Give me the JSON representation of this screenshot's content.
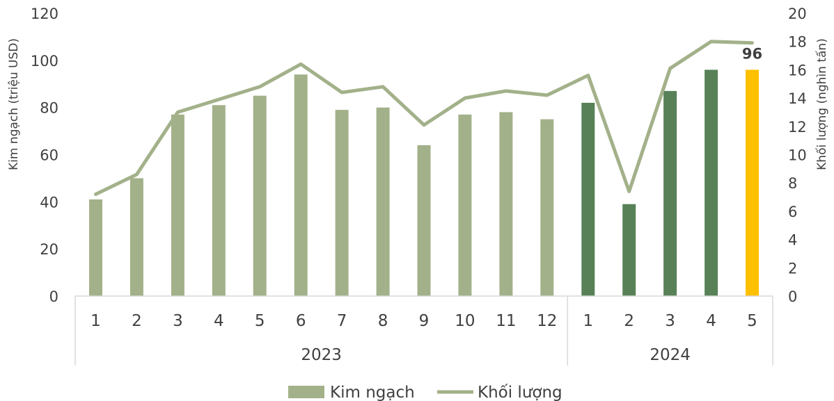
{
  "chart_data": {
    "type": "bar",
    "categories": [
      "1",
      "2",
      "3",
      "4",
      "5",
      "6",
      "7",
      "8",
      "9",
      "10",
      "11",
      "12",
      "1",
      "2",
      "3",
      "4",
      "5"
    ],
    "groups": [
      {
        "label": "2023",
        "count": 12
      },
      {
        "label": "2024",
        "count": 5
      }
    ],
    "series": [
      {
        "name": "Kim ngạch",
        "type": "bar",
        "axis": "left",
        "values": [
          41,
          50,
          77,
          81,
          85,
          94,
          79,
          80,
          64,
          77,
          78,
          75,
          82,
          39,
          87,
          96,
          96
        ],
        "colors": [
          "#a3b18a",
          "#a3b18a",
          "#a3b18a",
          "#a3b18a",
          "#a3b18a",
          "#a3b18a",
          "#a3b18a",
          "#a3b18a",
          "#a3b18a",
          "#a3b18a",
          "#a3b18a",
          "#a3b18a",
          "#588157",
          "#588157",
          "#588157",
          "#588157",
          "#ffc000"
        ]
      },
      {
        "name": "Khối lượng",
        "type": "line",
        "axis": "right",
        "values": [
          7.2,
          8.6,
          13.0,
          13.9,
          14.8,
          16.4,
          14.4,
          14.8,
          12.1,
          14.0,
          14.5,
          14.2,
          15.6,
          7.4,
          16.1,
          18.0,
          17.9
        ],
        "color": "#a3b18a"
      }
    ],
    "data_labels": [
      {
        "index": 16,
        "text": "96"
      }
    ],
    "ylabel": "Kim ngạch (triệu USD)",
    "y2label": "Khối lượng (nghìn tấn)",
    "ylim": [
      0,
      120
    ],
    "y2lim": [
      0,
      20
    ],
    "yticks": [
      "0",
      "20",
      "40",
      "60",
      "80",
      "100",
      "120"
    ],
    "y2ticks": [
      "0",
      "2",
      "4",
      "6",
      "8",
      "10",
      "12",
      "14",
      "16",
      "18",
      "20"
    ],
    "legend": {
      "position": "bottom",
      "bar_label": "Kim ngạch",
      "line_label": "Khối lượng"
    },
    "grid": false
  }
}
